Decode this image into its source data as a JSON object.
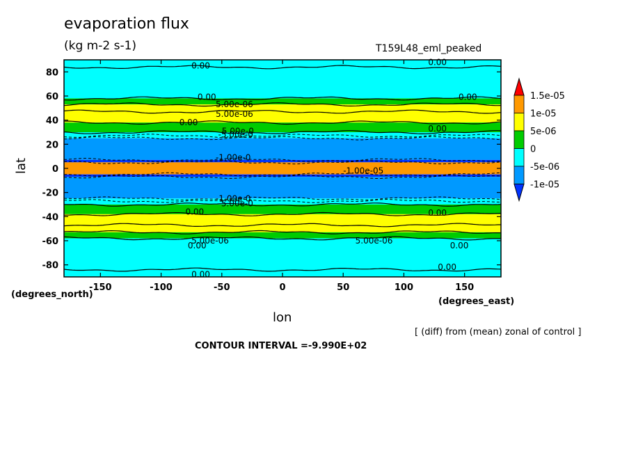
{
  "chart_data": {
    "type": "contour",
    "title": "evaporation flux",
    "units": "(kg m-2 s-1)",
    "run_label": "T159L48_eml_peaked",
    "xlabel": "lon",
    "ylabel": "lat",
    "x_unit_label": "(degrees_east)",
    "y_unit_label": "(degrees_north)",
    "note": "[ (diff) from (mean) zonal of control ]",
    "contour_interval_text": "CONTOUR INTERVAL =-9.990E+02",
    "xlim": [
      -180,
      180
    ],
    "ylim": [
      -90,
      90
    ],
    "x_ticks": [
      -150,
      -100,
      -50,
      0,
      50,
      100,
      150
    ],
    "x_tick_labels": [
      "-150",
      "-100",
      "-50",
      "0",
      "50",
      "100",
      "150"
    ],
    "y_ticks": [
      80,
      60,
      40,
      20,
      0,
      -20,
      -40,
      -60,
      -80
    ],
    "y_tick_labels": [
      "80",
      "60",
      "40",
      "20",
      "0",
      "-20",
      "-40",
      "-60",
      "-80"
    ],
    "colorbar": {
      "labels": [
        "1.5e-05",
        "1e-05",
        "5e-06",
        "0",
        "-5e-06",
        "-1e-05"
      ],
      "colors": [
        "#ff0000",
        "#ff9900",
        "#ffff00",
        "#00cc00",
        "#00ffff",
        "#0099ff",
        "#0033ff"
      ]
    },
    "bands": [
      {
        "lat_min": 58,
        "lat_max": 90,
        "color": "#00ffff"
      },
      {
        "lat_min": 53,
        "lat_max": 58,
        "color": "#00cc00"
      },
      {
        "lat_min": 38,
        "lat_max": 53,
        "color": "#ffff00"
      },
      {
        "lat_min": 30,
        "lat_max": 38,
        "color": "#00cc00"
      },
      {
        "lat_min": 25,
        "lat_max": 30,
        "color": "#00ffff"
      },
      {
        "lat_min": 7,
        "lat_max": 25,
        "color": "#0099ff"
      },
      {
        "lat_min": 5,
        "lat_max": 7,
        "color": "#0033ff"
      },
      {
        "lat_min": -5,
        "lat_max": 5,
        "color": "#ff9900"
      },
      {
        "lat_min": -7,
        "lat_max": -5,
        "color": "#0033ff"
      },
      {
        "lat_min": -25,
        "lat_max": -7,
        "color": "#0099ff"
      },
      {
        "lat_min": -30,
        "lat_max": -25,
        "color": "#00ffff"
      },
      {
        "lat_min": -38,
        "lat_max": -30,
        "color": "#00cc00"
      },
      {
        "lat_min": -53,
        "lat_max": -38,
        "color": "#ffff00"
      },
      {
        "lat_min": -58,
        "lat_max": -53,
        "color": "#00cc00"
      },
      {
        "lat_min": -90,
        "lat_max": -58,
        "color": "#00ffff"
      }
    ],
    "contour_lines": [
      {
        "lat": 84,
        "style": "solid"
      },
      {
        "lat": 58,
        "style": "solid"
      },
      {
        "lat": 53,
        "style": "solid"
      },
      {
        "lat": 47,
        "style": "solid"
      },
      {
        "lat": 38,
        "style": "solid"
      },
      {
        "lat": 30,
        "style": "solid"
      },
      {
        "lat": 27,
        "style": "dashed"
      },
      {
        "lat": 25,
        "style": "dashed"
      },
      {
        "lat": 7,
        "style": "dashed"
      },
      {
        "lat": 5,
        "style": "dashed"
      },
      {
        "lat": -5,
        "style": "dashed"
      },
      {
        "lat": -7,
        "style": "dashed"
      },
      {
        "lat": -25,
        "style": "dashed"
      },
      {
        "lat": -27,
        "style": "dashed"
      },
      {
        "lat": -30,
        "style": "solid"
      },
      {
        "lat": -38,
        "style": "solid"
      },
      {
        "lat": -47,
        "style": "solid"
      },
      {
        "lat": -53,
        "style": "solid"
      },
      {
        "lat": -58,
        "style": "solid"
      },
      {
        "lat": -84,
        "style": "solid"
      }
    ],
    "contour_labels": [
      {
        "text": "0.00",
        "lon": -75,
        "lat": 85
      },
      {
        "text": "0.00",
        "lon": 120,
        "lat": 88
      },
      {
        "text": "0.00",
        "lon": -70,
        "lat": 59
      },
      {
        "text": "0.00",
        "lon": 145,
        "lat": 59
      },
      {
        "text": "5.00e-06",
        "lon": -55,
        "lat": 53
      },
      {
        "text": "5.00e-06",
        "lon": -55,
        "lat": 45
      },
      {
        "text": "0.00",
        "lon": -85,
        "lat": 38
      },
      {
        "text": "0.00",
        "lon": 120,
        "lat": 33
      },
      {
        "text": "5.00e-0",
        "lon": -50,
        "lat": 31
      },
      {
        "text": "-5.00e-0",
        "lon": -53,
        "lat": 28
      },
      {
        "text": "-1.00e-0",
        "lon": -55,
        "lat": 9
      },
      {
        "text": "-1.00e-05",
        "lon": 50,
        "lat": -2
      },
      {
        "text": "-1.00e-0",
        "lon": -55,
        "lat": -25
      },
      {
        "text": "-5.00e-0",
        "lon": -53,
        "lat": -29
      },
      {
        "text": "0.00",
        "lon": -80,
        "lat": -36
      },
      {
        "text": "0.00",
        "lon": 120,
        "lat": -37
      },
      {
        "text": "5.00e-06",
        "lon": -75,
        "lat": -60
      },
      {
        "text": "5.00e-06",
        "lon": 60,
        "lat": -60
      },
      {
        "text": "0.00",
        "lon": -78,
        "lat": -64
      },
      {
        "text": "0.00",
        "lon": 138,
        "lat": -64
      },
      {
        "text": "0.00",
        "lon": -75,
        "lat": -88
      },
      {
        "text": "0.00",
        "lon": 128,
        "lat": -82
      }
    ]
  }
}
